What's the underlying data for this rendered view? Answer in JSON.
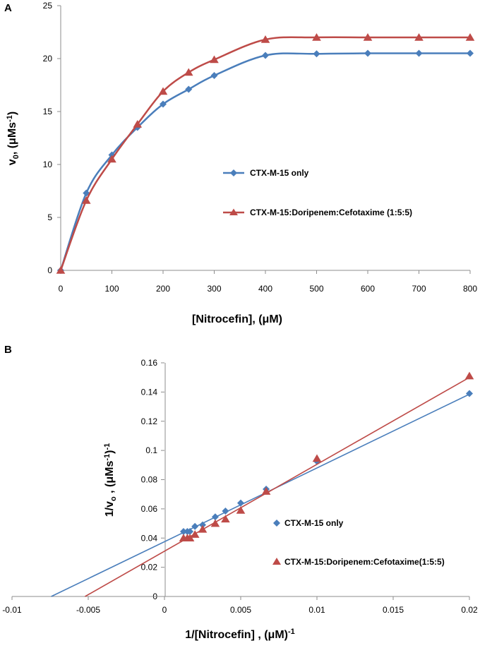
{
  "colors": {
    "blue": "#4a7ebb",
    "red": "#be4b48",
    "axis": "#8c8c8c",
    "tick_text": "#000000"
  },
  "chart_data": [
    {
      "panel": "A",
      "type": "line",
      "xlabel": "[Nitrocefin], (μM)",
      "ylabel_main": "v",
      "ylabel_sub": "0",
      "ylabel_rest": ", (μMs",
      "ylabel_sup": "-1",
      "ylabel_end": ")",
      "xlim": [
        0,
        800
      ],
      "ylim": [
        0,
        25
      ],
      "xticks": [
        "0",
        "100",
        "200",
        "300",
        "400",
        "500",
        "600",
        "700",
        "800"
      ],
      "yticks": [
        "0",
        "5",
        "10",
        "15",
        "20",
        "25"
      ],
      "xtick_values": [
        0,
        100,
        200,
        300,
        400,
        500,
        600,
        700,
        800
      ],
      "ytick_values": [
        0,
        5,
        10,
        15,
        20,
        25
      ],
      "legend_position": "center-right",
      "series": [
        {
          "name": "CTX-M-15 only",
          "color": "#4a7ebb",
          "marker": "diamond",
          "x": [
            0,
            50,
            100,
            150,
            200,
            250,
            300,
            400,
            500,
            600,
            700,
            800
          ],
          "y": [
            0,
            7.3,
            10.9,
            13.5,
            15.7,
            17.1,
            18.4,
            20.3,
            20.45,
            20.5,
            20.5,
            20.5
          ]
        },
        {
          "name": "CTX-M-15:Doripenem:Cefotaxime (1:5:5)",
          "color": "#be4b48",
          "marker": "triangle",
          "x": [
            0,
            50,
            100,
            150,
            200,
            250,
            300,
            400,
            500,
            600,
            700,
            800
          ],
          "y": [
            0,
            6.6,
            10.5,
            13.8,
            16.9,
            18.7,
            19.9,
            21.8,
            22.0,
            22.0,
            22.0,
            22.0
          ]
        }
      ]
    },
    {
      "panel": "B",
      "type": "scatter",
      "xlabel_main": "1/[Nitrocefin] , (μM)",
      "xlabel_sup": "-1",
      "ylabel_main": "1/v",
      "ylabel_sub": "o",
      "ylabel_rest": " , (μMs",
      "ylabel_sup": "-1",
      "ylabel_end": ")",
      "ylabel_sup2": "-1",
      "xlim": [
        -0.01,
        0.02
      ],
      "ylim": [
        0,
        0.16
      ],
      "xticks": [
        "-0.01",
        "-0.005",
        "0",
        "0.005",
        "0.01",
        "0.015",
        "0.02"
      ],
      "yticks": [
        "0",
        "0.02",
        "0.04",
        "0.06",
        "0.08",
        "0.1",
        "0.12",
        "0.14",
        "0.16"
      ],
      "xtick_values": [
        -0.01,
        -0.005,
        0,
        0.005,
        0.01,
        0.015,
        0.02
      ],
      "ytick_values": [
        0,
        0.02,
        0.04,
        0.06,
        0.08,
        0.1,
        0.12,
        0.14,
        0.16
      ],
      "legend_position": "lower-right",
      "series": [
        {
          "name": "CTX-M-15 only",
          "color": "#4a7ebb",
          "marker": "diamond",
          "x": [
            0.00125,
            0.0015,
            0.00167,
            0.002,
            0.0025,
            0.00333,
            0.004,
            0.005,
            0.00667,
            0.01,
            0.02
          ],
          "y": [
            0.0445,
            0.0445,
            0.0445,
            0.048,
            0.049,
            0.0545,
            0.0585,
            0.064,
            0.0735,
            0.0925,
            0.139
          ],
          "trendline": {
            "slope": 5.05,
            "intercept": 0.0375
          }
        },
        {
          "name": "CTX-M-15:Doripenem:Cefotaxime(1:5:5)",
          "color": "#be4b48",
          "marker": "triangle",
          "x": [
            0.00125,
            0.0015,
            0.00167,
            0.002,
            0.0025,
            0.00333,
            0.004,
            0.005,
            0.00667,
            0.01,
            0.02
          ],
          "y": [
            0.04,
            0.04,
            0.04,
            0.0425,
            0.046,
            0.05,
            0.053,
            0.059,
            0.072,
            0.0945,
            0.151
          ],
          "trendline": {
            "slope": 5.95,
            "intercept": 0.031
          }
        }
      ]
    }
  ]
}
